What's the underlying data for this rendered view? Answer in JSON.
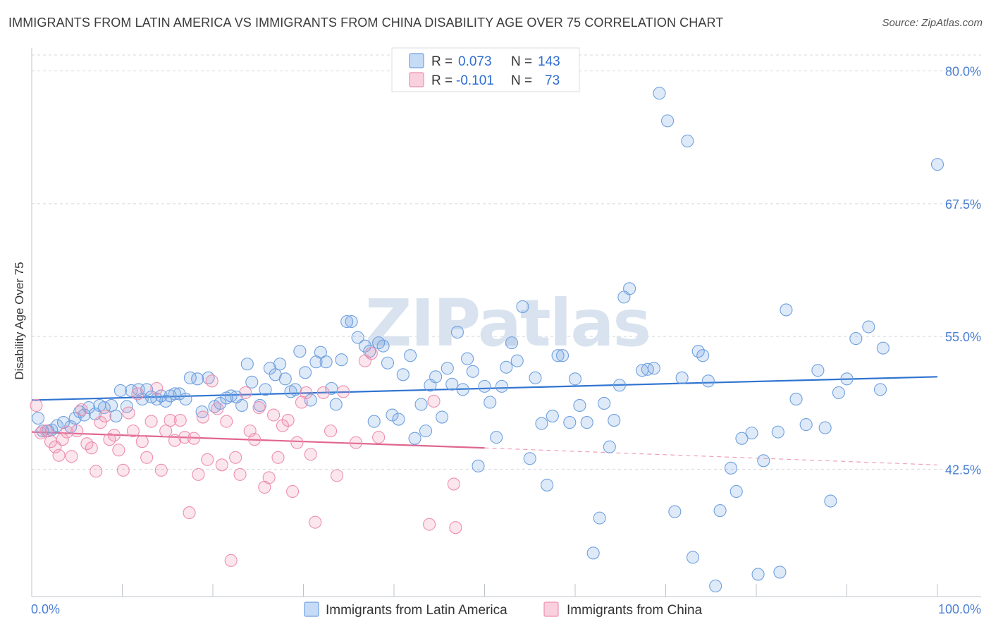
{
  "header": {
    "title": "IMMIGRANTS FROM LATIN AMERICA VS IMMIGRANTS FROM CHINA DISABILITY AGE OVER 75 CORRELATION CHART",
    "source": "Source: ZipAtlas.com"
  },
  "watermark": "ZIPatlas",
  "legend": {
    "r_label": "R =",
    "n_label": "N =",
    "rows": [
      {
        "r": "0.073",
        "n": "143",
        "color": "#6fa0e0"
      },
      {
        "r": "-0.101",
        "n": "73",
        "color": "#ee8fae"
      }
    ]
  },
  "chart_data": {
    "type": "scatter",
    "title": "IMMIGRANTS FROM LATIN AMERICA VS IMMIGRANTS FROM CHINA DISABILITY AGE OVER 75 CORRELATION CHART",
    "xlabel": "",
    "ylabel": "Disability Age Over 75",
    "xlim": [
      0,
      100
    ],
    "ylim": [
      31.5,
      81.5
    ],
    "x_tick_labels": [
      "0.0%",
      "100.0%"
    ],
    "y_ticks": [
      42.5,
      55.0,
      67.5,
      80.0
    ],
    "y_tick_labels": [
      "42.5%",
      "55.0%",
      "67.5%",
      "80.0%"
    ],
    "grid": true,
    "legend_position": "top-center",
    "series": [
      {
        "name": "Immigrants from Latin America",
        "color": "#6fa0e0",
        "trend": {
          "x": [
            0,
            100
          ],
          "y": [
            49.0,
            51.2
          ]
        },
        "points": [
          [
            0.7,
            47.3
          ],
          [
            1.2,
            46.1
          ],
          [
            1.8,
            46.1
          ],
          [
            2.2,
            46.2
          ],
          [
            2.8,
            46.6
          ],
          [
            3.5,
            46.9
          ],
          [
            4.3,
            46.5
          ],
          [
            4.8,
            47.3
          ],
          [
            5.3,
            47.9
          ],
          [
            5.8,
            47.6
          ],
          [
            6.3,
            48.3
          ],
          [
            7.0,
            47.7
          ],
          [
            7.5,
            48.5
          ],
          [
            8.0,
            48.3
          ],
          [
            8.8,
            48.5
          ],
          [
            9.3,
            47.5
          ],
          [
            9.8,
            49.9
          ],
          [
            10.5,
            48.4
          ],
          [
            11.0,
            49.9
          ],
          [
            11.8,
            50.0
          ],
          [
            12.2,
            49.1
          ],
          [
            12.7,
            50.0
          ],
          [
            13.2,
            49.3
          ],
          [
            13.8,
            49.1
          ],
          [
            14.3,
            49.4
          ],
          [
            14.8,
            48.9
          ],
          [
            15.3,
            49.4
          ],
          [
            15.8,
            49.6
          ],
          [
            16.3,
            49.6
          ],
          [
            17.0,
            49.1
          ],
          [
            17.5,
            51.1
          ],
          [
            18.3,
            51.0
          ],
          [
            18.8,
            47.9
          ],
          [
            19.5,
            51.1
          ],
          [
            20.2,
            48.4
          ],
          [
            20.8,
            48.7
          ],
          [
            21.5,
            49.2
          ],
          [
            22.0,
            49.4
          ],
          [
            22.6,
            49.3
          ],
          [
            23.2,
            48.5
          ],
          [
            23.8,
            52.4
          ],
          [
            24.3,
            50.7
          ],
          [
            25.2,
            48.5
          ],
          [
            25.8,
            50.0
          ],
          [
            26.3,
            52.0
          ],
          [
            26.9,
            51.4
          ],
          [
            27.4,
            52.4
          ],
          [
            28.0,
            51.0
          ],
          [
            28.6,
            49.8
          ],
          [
            29.1,
            50.0
          ],
          [
            29.6,
            53.6
          ],
          [
            30.2,
            51.6
          ],
          [
            30.8,
            49.0
          ],
          [
            31.4,
            52.6
          ],
          [
            31.9,
            53.5
          ],
          [
            32.5,
            52.6
          ],
          [
            33.1,
            50.1
          ],
          [
            33.6,
            48.6
          ],
          [
            34.2,
            52.8
          ],
          [
            34.8,
            56.4
          ],
          [
            35.3,
            56.4
          ],
          [
            36.0,
            54.9
          ],
          [
            36.8,
            54.1
          ],
          [
            37.3,
            53.6
          ],
          [
            37.8,
            47.0
          ],
          [
            38.3,
            54.4
          ],
          [
            38.8,
            54.1
          ],
          [
            39.3,
            52.5
          ],
          [
            39.8,
            47.6
          ],
          [
            40.5,
            47.2
          ],
          [
            41.0,
            51.4
          ],
          [
            41.8,
            53.2
          ],
          [
            42.3,
            45.4
          ],
          [
            43.0,
            48.6
          ],
          [
            43.5,
            46.1
          ],
          [
            44.0,
            50.4
          ],
          [
            44.6,
            51.2
          ],
          [
            45.3,
            47.4
          ],
          [
            45.9,
            52.0
          ],
          [
            46.4,
            50.5
          ],
          [
            47.0,
            55.4
          ],
          [
            47.6,
            50.0
          ],
          [
            48.1,
            52.9
          ],
          [
            48.7,
            51.7
          ],
          [
            49.3,
            42.8
          ],
          [
            50.0,
            50.3
          ],
          [
            50.6,
            48.8
          ],
          [
            51.3,
            45.5
          ],
          [
            51.9,
            50.3
          ],
          [
            52.4,
            52.1
          ],
          [
            53.0,
            54.4
          ],
          [
            53.6,
            52.7
          ],
          [
            54.2,
            57.8
          ],
          [
            55.0,
            43.5
          ],
          [
            55.6,
            51.1
          ],
          [
            56.3,
            46.8
          ],
          [
            56.9,
            41.0
          ],
          [
            57.5,
            47.5
          ],
          [
            58.1,
            53.2
          ],
          [
            58.6,
            53.2
          ],
          [
            59.4,
            46.9
          ],
          [
            60.0,
            51.0
          ],
          [
            60.5,
            48.5
          ],
          [
            61.3,
            46.9
          ],
          [
            62.0,
            34.6
          ],
          [
            62.7,
            37.9
          ],
          [
            63.2,
            48.7
          ],
          [
            63.8,
            44.6
          ],
          [
            64.3,
            47.1
          ],
          [
            64.9,
            50.4
          ],
          [
            65.4,
            58.7
          ],
          [
            66.0,
            59.5
          ],
          [
            67.4,
            51.8
          ],
          [
            68.0,
            51.9
          ],
          [
            68.7,
            52.0
          ],
          [
            69.3,
            77.9
          ],
          [
            70.2,
            75.3
          ],
          [
            71.0,
            38.5
          ],
          [
            71.8,
            51.1
          ],
          [
            72.4,
            73.4
          ],
          [
            73.0,
            34.2
          ],
          [
            73.6,
            53.6
          ],
          [
            74.1,
            53.2
          ],
          [
            74.7,
            50.8
          ],
          [
            75.5,
            31.5
          ],
          [
            76.0,
            38.6
          ],
          [
            77.2,
            42.6
          ],
          [
            77.8,
            40.4
          ],
          [
            78.4,
            45.4
          ],
          [
            79.5,
            45.9
          ],
          [
            80.2,
            32.6
          ],
          [
            80.8,
            43.3
          ],
          [
            82.4,
            46.0
          ],
          [
            82.6,
            32.8
          ],
          [
            83.3,
            57.5
          ],
          [
            84.4,
            49.1
          ],
          [
            85.5,
            46.7
          ],
          [
            86.8,
            51.8
          ],
          [
            87.6,
            46.4
          ],
          [
            88.2,
            39.5
          ],
          [
            89.1,
            49.7
          ],
          [
            90.0,
            51.0
          ],
          [
            91.0,
            54.8
          ],
          [
            92.4,
            55.9
          ],
          [
            93.7,
            50.0
          ],
          [
            94.0,
            53.9
          ],
          [
            100.0,
            71.2
          ]
        ]
      },
      {
        "name": "Immigrants from China",
        "color": "#ee8fae",
        "trend": {
          "x": [
            0,
            50
          ],
          "y": [
            46.0,
            44.5
          ]
        },
        "trend_dashed": {
          "x": [
            50,
            100
          ],
          "y": [
            44.5,
            42.9
          ]
        },
        "points": [
          [
            0.5,
            48.5
          ],
          [
            1.0,
            45.9
          ],
          [
            1.6,
            46.1
          ],
          [
            2.1,
            45.1
          ],
          [
            2.6,
            44.6
          ],
          [
            3.0,
            43.8
          ],
          [
            3.4,
            45.3
          ],
          [
            3.9,
            46.0
          ],
          [
            4.4,
            43.7
          ],
          [
            5.0,
            46.1
          ],
          [
            5.5,
            48.1
          ],
          [
            6.1,
            44.9
          ],
          [
            6.6,
            44.5
          ],
          [
            7.1,
            42.3
          ],
          [
            7.6,
            46.9
          ],
          [
            8.1,
            47.5
          ],
          [
            8.6,
            45.3
          ],
          [
            9.1,
            45.7
          ],
          [
            9.6,
            44.3
          ],
          [
            10.1,
            42.4
          ],
          [
            10.7,
            47.8
          ],
          [
            11.2,
            46.1
          ],
          [
            11.7,
            49.6
          ],
          [
            12.2,
            45.1
          ],
          [
            12.7,
            43.6
          ],
          [
            13.2,
            47.0
          ],
          [
            13.8,
            50.1
          ],
          [
            14.3,
            42.4
          ],
          [
            14.8,
            46.1
          ],
          [
            15.3,
            47.1
          ],
          [
            15.8,
            45.2
          ],
          [
            16.4,
            47.1
          ],
          [
            16.9,
            45.5
          ],
          [
            17.4,
            38.4
          ],
          [
            17.9,
            45.4
          ],
          [
            18.4,
            42.0
          ],
          [
            18.9,
            47.4
          ],
          [
            19.4,
            43.4
          ],
          [
            19.9,
            50.8
          ],
          [
            20.5,
            48.2
          ],
          [
            21.0,
            42.9
          ],
          [
            21.5,
            47.0
          ],
          [
            22.0,
            33.9
          ],
          [
            22.5,
            43.6
          ],
          [
            23.0,
            42.0
          ],
          [
            23.6,
            49.7
          ],
          [
            24.1,
            46.1
          ],
          [
            24.6,
            45.3
          ],
          [
            25.1,
            48.3
          ],
          [
            25.7,
            40.8
          ],
          [
            26.2,
            41.7
          ],
          [
            26.7,
            47.6
          ],
          [
            27.2,
            43.6
          ],
          [
            27.7,
            46.6
          ],
          [
            28.3,
            47.1
          ],
          [
            28.8,
            40.4
          ],
          [
            29.3,
            45.0
          ],
          [
            29.8,
            48.8
          ],
          [
            30.3,
            49.7
          ],
          [
            30.8,
            43.9
          ],
          [
            31.3,
            37.5
          ],
          [
            32.2,
            49.7
          ],
          [
            33.0,
            46.1
          ],
          [
            33.7,
            41.9
          ],
          [
            34.4,
            49.8
          ],
          [
            35.8,
            45.0
          ],
          [
            36.8,
            52.7
          ],
          [
            37.5,
            53.4
          ],
          [
            38.3,
            45.5
          ],
          [
            43.9,
            37.3
          ],
          [
            44.4,
            48.9
          ],
          [
            46.8,
            37.0
          ],
          [
            46.6,
            41.1
          ]
        ]
      }
    ]
  },
  "bottom_legend": [
    {
      "label": "Immigrants from Latin America",
      "color": "#6fa0e0"
    },
    {
      "label": "Immigrants from China",
      "color": "#ee8fae"
    }
  ]
}
